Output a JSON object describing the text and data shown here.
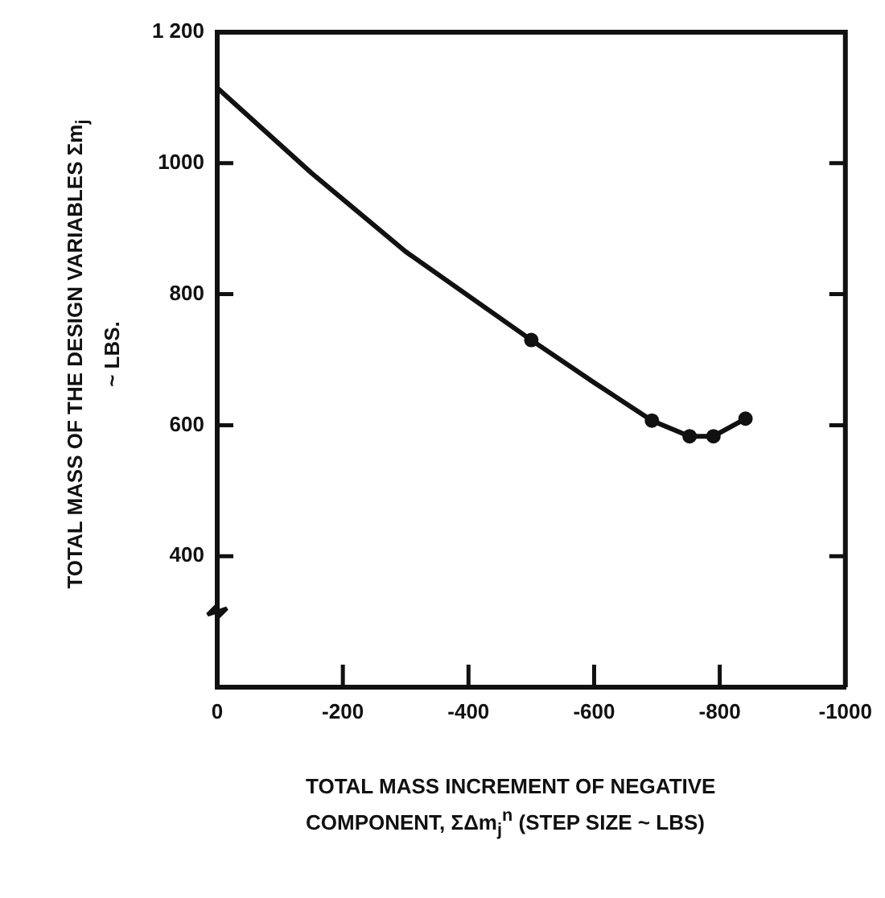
{
  "chart_data": {
    "type": "line",
    "xlabel": "TOTAL MASS INCREMENT OF NEGATIVE COMPONENT, ΣΔm$_{j}$$^{n}$ (STEP SIZE ~ LBS)",
    "ylabel": "TOTAL MASS OF THE DESIGN VARIABLES Σm$_{j}$ ~ LBS.",
    "xlim": [
      0,
      -1000
    ],
    "xticks": [
      0,
      -200,
      -400,
      -600,
      -800,
      -1000
    ],
    "ylim": [
      200,
      1200
    ],
    "yticks": [
      400,
      600,
      800,
      1000,
      {
        "value": 1200,
        "label": "1 200"
      }
    ],
    "grid": false,
    "legend": false,
    "series": [
      {
        "color": "#111111",
        "marker": "none",
        "x": [
          0,
          -150,
          -300,
          -500,
          -600,
          -692,
          -752,
          -790,
          -841
        ],
        "values": [
          1115,
          985,
          865,
          730,
          665,
          607,
          583,
          583,
          610
        ]
      },
      {
        "type": "scatter",
        "color": "#111111",
        "marker": "circle",
        "x": [
          -500,
          -692,
          -752,
          -790,
          -841
        ],
        "values": [
          730,
          607,
          583,
          583,
          610
        ]
      }
    ]
  }
}
